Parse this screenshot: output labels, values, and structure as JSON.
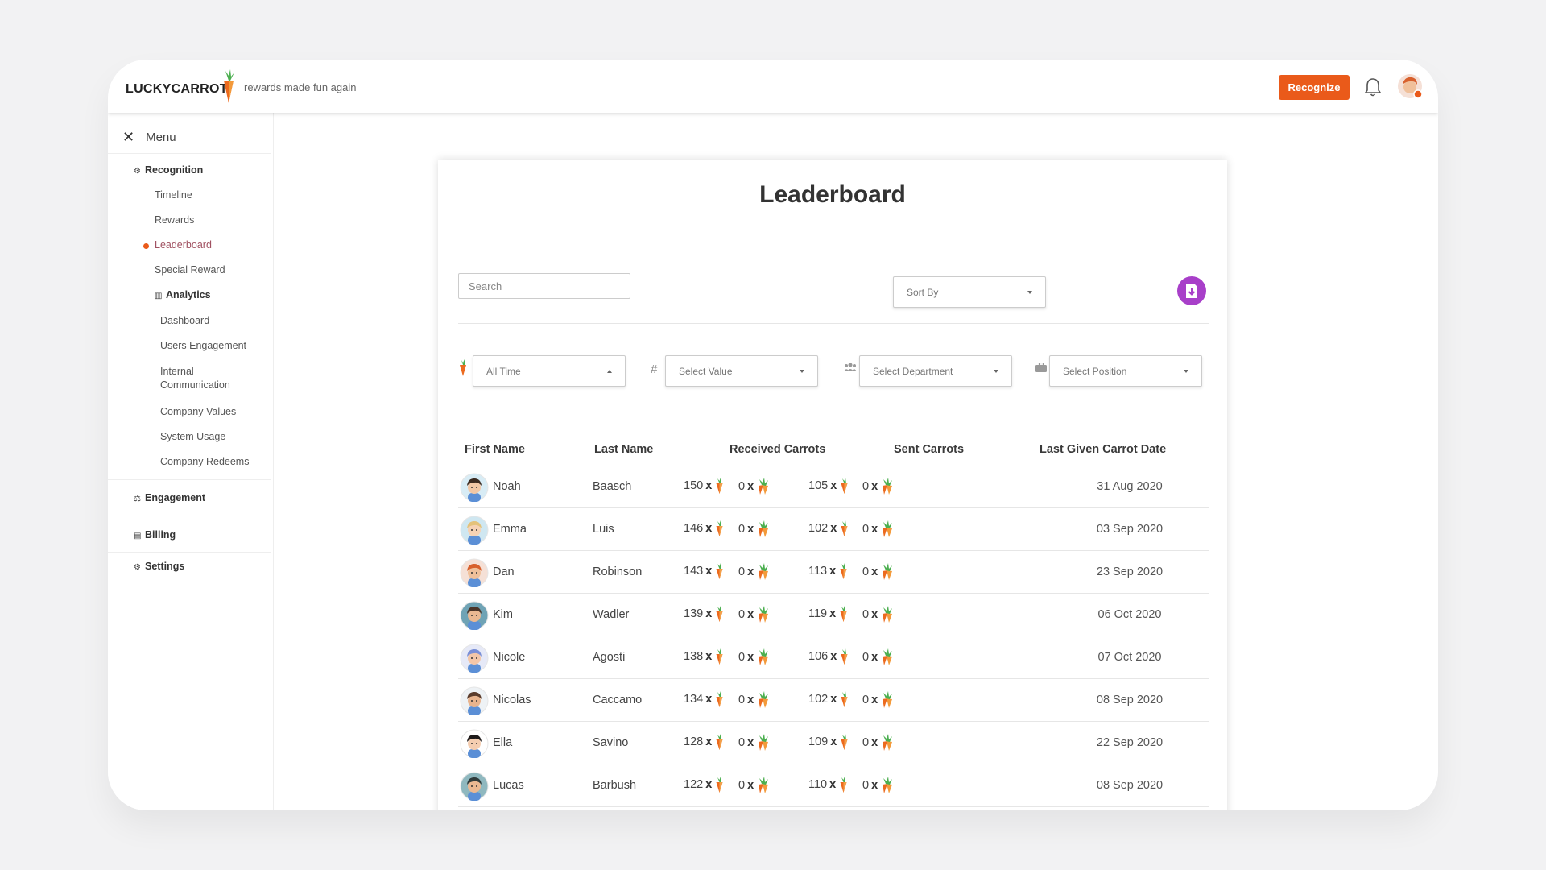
{
  "brand": {
    "logo": "LUCKYCARROT",
    "tagline": "rewards made fun again",
    "accent": "#ea5a1a",
    "purple": "#a83fc9"
  },
  "header": {
    "recognize_label": "Recognize",
    "bell_icon": "bell-icon",
    "avatar": "user-avatar"
  },
  "sidebar": {
    "menu_label": "Menu",
    "recognition": "Recognition",
    "items": [
      "Timeline",
      "Rewards",
      "Leaderboard",
      "Special Reward"
    ],
    "active": "Leaderboard",
    "analytics": "Analytics",
    "analytics_items": [
      "Dashboard",
      "Users Engagement",
      "Internal Communication",
      "Company Values",
      "System Usage",
      "Company Redeems"
    ],
    "engagement": "Engagement",
    "billing": "Billing",
    "settings": "Settings"
  },
  "main": {
    "title": "Leaderboard",
    "search_placeholder": "Search",
    "sort_by": "Sort By",
    "filters": {
      "time": "All Time",
      "value": "Select Value",
      "department": "Select Department",
      "position": "Select Position"
    },
    "hash_label": "#",
    "columns": [
      "First Name",
      "Last Name",
      "Received Carrots",
      "Sent Carrots",
      "Last Given Carrot Date"
    ],
    "rows": [
      {
        "first": "Noah",
        "last": "Baasch",
        "rc": "150",
        "rc2": "0",
        "sc": "105",
        "sc2": "0",
        "date": "31 Aug 2020",
        "skin": "#f1c7a5",
        "hair": "#3b2a20",
        "bg": "#d8ecf5"
      },
      {
        "first": "Emma",
        "last": "Luis",
        "rc": "146",
        "rc2": "0",
        "sc": "102",
        "sc2": "0",
        "date": "03 Sep 2020",
        "skin": "#f6d2b4",
        "hair": "#e4c27a",
        "bg": "#cfe7f1"
      },
      {
        "first": "Dan",
        "last": "Robinson",
        "rc": "143",
        "rc2": "0",
        "sc": "113",
        "sc2": "0",
        "date": "23 Sep 2020",
        "skin": "#f0c09a",
        "hair": "#d8602c",
        "bg": "#f5e0d6"
      },
      {
        "first": "Kim",
        "last": "Wadler",
        "rc": "139",
        "rc2": "0",
        "sc": "119",
        "sc2": "0",
        "date": "06 Oct 2020",
        "skin": "#eab892",
        "hair": "#4a3428",
        "bg": "#6fa3b5"
      },
      {
        "first": "Nicole",
        "last": "Agosti",
        "rc": "138",
        "rc2": "0",
        "sc": "106",
        "sc2": "0",
        "date": "07 Oct 2020",
        "skin": "#f3c6a8",
        "hair": "#7a8fd6",
        "bg": "#e6e9f7"
      },
      {
        "first": "Nicolas",
        "last": "Caccamo",
        "rc": "134",
        "rc2": "0",
        "sc": "102",
        "sc2": "0",
        "date": "08 Sep 2020",
        "skin": "#e8b48e",
        "hair": "#5a3c2c",
        "bg": "#eef2f5"
      },
      {
        "first": "Ella",
        "last": "Savino",
        "rc": "128",
        "rc2": "0",
        "sc": "109",
        "sc2": "0",
        "date": "22 Sep 2020",
        "skin": "#f4cdb0",
        "hair": "#1e1a1a",
        "bg": "#ffffff"
      },
      {
        "first": "Lucas",
        "last": "Barbush",
        "rc": "122",
        "rc2": "0",
        "sc": "110",
        "sc2": "0",
        "date": "08 Sep 2020",
        "skin": "#eab892",
        "hair": "#2f3a3a",
        "bg": "#8fb8bf"
      }
    ],
    "multiplier": "x"
  }
}
